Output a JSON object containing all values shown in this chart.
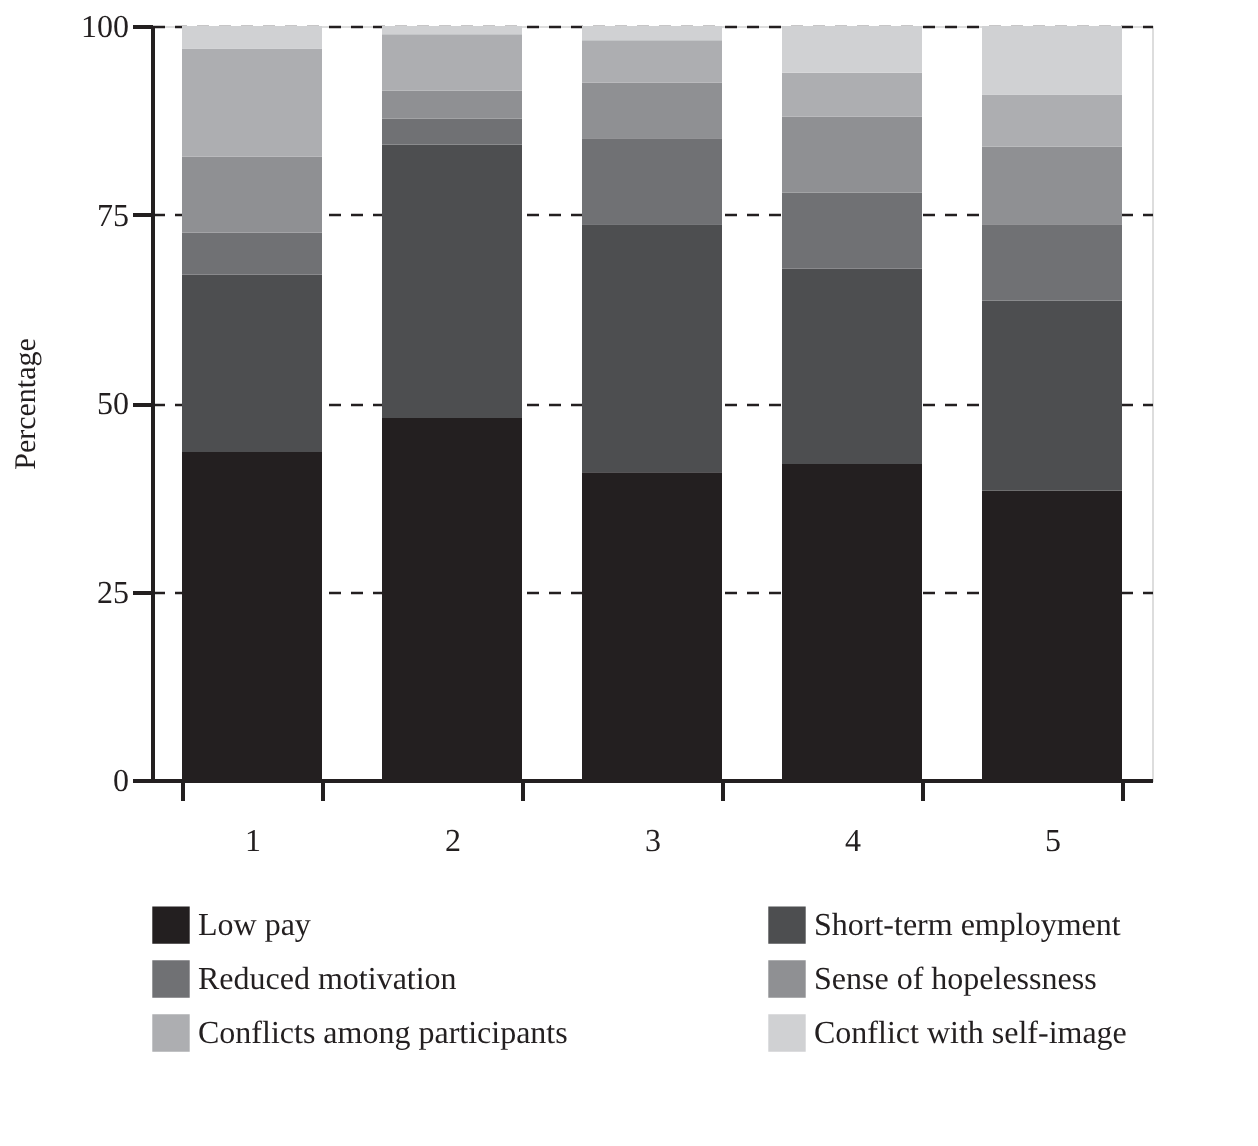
{
  "chart_data": {
    "type": "bar",
    "stacked": true,
    "ylabel": "Percentage",
    "categories": [
      "1",
      "2",
      "3",
      "4",
      "5"
    ],
    "series": [
      {
        "name": "Low pay",
        "color": "#231f20",
        "values": [
          43.5,
          48.0,
          40.8,
          41.9,
          38.4
        ]
      },
      {
        "name": "Short-term employment",
        "color": "#4d4e50",
        "values": [
          23.5,
          36.3,
          32.9,
          25.9,
          25.2
        ]
      },
      {
        "name": "Reduced motivation",
        "color": "#707174",
        "values": [
          5.6,
          3.4,
          11.4,
          10.1,
          10.1
        ]
      },
      {
        "name": "Sense of hopelessness",
        "color": "#8f9093",
        "values": [
          10.1,
          3.7,
          7.4,
          10.1,
          10.3
        ]
      },
      {
        "name": "Conflicts among participants",
        "color": "#adaeb1",
        "values": [
          14.3,
          7.5,
          5.6,
          5.8,
          6.9
        ]
      },
      {
        "name": "Conflict with self-image",
        "color": "#d0d1d3",
        "values": [
          3.0,
          1.1,
          1.9,
          6.2,
          9.1
        ]
      }
    ],
    "ylim": [
      0,
      100
    ],
    "yticks": [
      0,
      25,
      50,
      75,
      100
    ],
    "grid": "y",
    "legend": "bottom"
  }
}
